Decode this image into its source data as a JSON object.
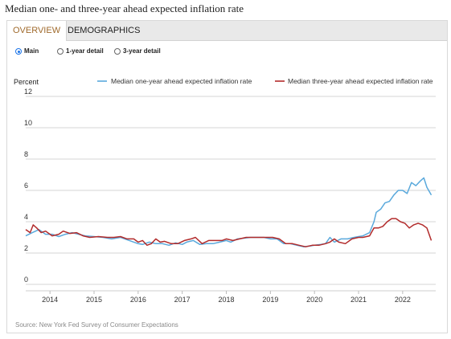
{
  "page": {
    "title": "Median one- and three-year ahead expected inflation rate",
    "source": "Source: New York Fed Survey of Consumer Expectations"
  },
  "tabs": [
    {
      "label": "OVERVIEW",
      "active": true
    },
    {
      "label": "DEMOGRAPHICS",
      "active": false
    }
  ],
  "options": [
    {
      "label": "Main",
      "selected": true
    },
    {
      "label": "1-year detail",
      "selected": false
    },
    {
      "label": "3-year detail",
      "selected": false
    }
  ],
  "colors": {
    "one_year": "#5aa9dc",
    "three_year": "#b22b2b",
    "grid": "#d6d6d6",
    "tab_active": "#a06a2c",
    "radio_selected": "#1a73e8"
  },
  "chart_data": {
    "type": "line",
    "ylabel": "Percent",
    "xlabel": "",
    "ylim": [
      0,
      12
    ],
    "yticks": [
      0,
      2,
      4,
      6,
      8,
      10,
      12
    ],
    "xlim": [
      2013.45,
      2022.75
    ],
    "xticks": [
      2014,
      2015,
      2016,
      2017,
      2018,
      2019,
      2020,
      2021,
      2022
    ],
    "grid": "horizontal",
    "legend": "top",
    "series": [
      {
        "name": "Median one-year ahead expected inflation rate",
        "color": "#5aa9dc",
        "points": [
          [
            2013.45,
            3.1
          ],
          [
            2013.6,
            3.3
          ],
          [
            2013.75,
            3.5
          ],
          [
            2013.9,
            3.2
          ],
          [
            2014.05,
            3.2
          ],
          [
            2014.2,
            3.05
          ],
          [
            2014.35,
            3.2
          ],
          [
            2014.5,
            3.3
          ],
          [
            2014.65,
            3.2
          ],
          [
            2014.8,
            3.1
          ],
          [
            2015.0,
            3.05
          ],
          [
            2015.2,
            3.0
          ],
          [
            2015.4,
            2.9
          ],
          [
            2015.6,
            3.0
          ],
          [
            2015.8,
            2.8
          ],
          [
            2016.0,
            2.6
          ],
          [
            2016.1,
            2.55
          ],
          [
            2016.25,
            2.7
          ],
          [
            2016.4,
            2.6
          ],
          [
            2016.55,
            2.6
          ],
          [
            2016.7,
            2.5
          ],
          [
            2016.85,
            2.65
          ],
          [
            2017.0,
            2.55
          ],
          [
            2017.1,
            2.7
          ],
          [
            2017.25,
            2.8
          ],
          [
            2017.4,
            2.55
          ],
          [
            2017.55,
            2.6
          ],
          [
            2017.7,
            2.6
          ],
          [
            2017.85,
            2.7
          ],
          [
            2018.0,
            2.8
          ],
          [
            2018.1,
            2.7
          ],
          [
            2018.25,
            2.9
          ],
          [
            2018.4,
            2.95
          ],
          [
            2018.55,
            3.0
          ],
          [
            2018.7,
            3.0
          ],
          [
            2018.85,
            3.0
          ],
          [
            2019.0,
            2.9
          ],
          [
            2019.15,
            2.9
          ],
          [
            2019.3,
            2.6
          ],
          [
            2019.45,
            2.6
          ],
          [
            2019.6,
            2.5
          ],
          [
            2019.75,
            2.4
          ],
          [
            2019.9,
            2.45
          ],
          [
            2020.0,
            2.5
          ],
          [
            2020.15,
            2.55
          ],
          [
            2020.25,
            2.6
          ],
          [
            2020.35,
            3.0
          ],
          [
            2020.45,
            2.7
          ],
          [
            2020.6,
            2.9
          ],
          [
            2020.75,
            2.9
          ],
          [
            2020.9,
            3.0
          ],
          [
            2021.0,
            3.05
          ],
          [
            2021.1,
            3.1
          ],
          [
            2021.25,
            3.3
          ],
          [
            2021.35,
            4.0
          ],
          [
            2021.4,
            4.6
          ],
          [
            2021.5,
            4.8
          ],
          [
            2021.6,
            5.2
          ],
          [
            2021.7,
            5.3
          ],
          [
            2021.8,
            5.7
          ],
          [
            2021.9,
            6.0
          ],
          [
            2022.0,
            6.0
          ],
          [
            2022.1,
            5.8
          ],
          [
            2022.2,
            6.5
          ],
          [
            2022.3,
            6.3
          ],
          [
            2022.4,
            6.6
          ],
          [
            2022.48,
            6.8
          ],
          [
            2022.55,
            6.2
          ],
          [
            2022.65,
            5.7
          ]
        ]
      },
      {
        "name": "Median three-year ahead expected inflation rate",
        "color": "#b22b2b",
        "points": [
          [
            2013.45,
            3.5
          ],
          [
            2013.55,
            3.3
          ],
          [
            2013.62,
            3.8
          ],
          [
            2013.7,
            3.6
          ],
          [
            2013.8,
            3.3
          ],
          [
            2013.9,
            3.4
          ],
          [
            2014.05,
            3.1
          ],
          [
            2014.2,
            3.2
          ],
          [
            2014.3,
            3.4
          ],
          [
            2014.45,
            3.25
          ],
          [
            2014.6,
            3.3
          ],
          [
            2014.75,
            3.1
          ],
          [
            2014.9,
            3.0
          ],
          [
            2015.1,
            3.05
          ],
          [
            2015.3,
            3.0
          ],
          [
            2015.45,
            3.0
          ],
          [
            2015.6,
            3.05
          ],
          [
            2015.75,
            2.9
          ],
          [
            2015.9,
            2.9
          ],
          [
            2016.0,
            2.7
          ],
          [
            2016.1,
            2.8
          ],
          [
            2016.2,
            2.5
          ],
          [
            2016.3,
            2.6
          ],
          [
            2016.4,
            2.9
          ],
          [
            2016.5,
            2.7
          ],
          [
            2016.6,
            2.75
          ],
          [
            2016.75,
            2.6
          ],
          [
            2016.9,
            2.6
          ],
          [
            2017.05,
            2.8
          ],
          [
            2017.2,
            2.9
          ],
          [
            2017.3,
            3.0
          ],
          [
            2017.45,
            2.6
          ],
          [
            2017.6,
            2.8
          ],
          [
            2017.75,
            2.8
          ],
          [
            2017.9,
            2.8
          ],
          [
            2018.0,
            2.9
          ],
          [
            2018.15,
            2.8
          ],
          [
            2018.3,
            2.9
          ],
          [
            2018.45,
            3.0
          ],
          [
            2018.6,
            3.0
          ],
          [
            2018.75,
            3.0
          ],
          [
            2018.9,
            3.0
          ],
          [
            2019.05,
            3.0
          ],
          [
            2019.2,
            2.9
          ],
          [
            2019.35,
            2.6
          ],
          [
            2019.5,
            2.6
          ],
          [
            2019.65,
            2.5
          ],
          [
            2019.8,
            2.4
          ],
          [
            2019.95,
            2.5
          ],
          [
            2020.1,
            2.5
          ],
          [
            2020.25,
            2.6
          ],
          [
            2020.35,
            2.7
          ],
          [
            2020.45,
            2.9
          ],
          [
            2020.55,
            2.7
          ],
          [
            2020.7,
            2.6
          ],
          [
            2020.85,
            2.9
          ],
          [
            2021.0,
            3.0
          ],
          [
            2021.1,
            3.0
          ],
          [
            2021.25,
            3.1
          ],
          [
            2021.35,
            3.6
          ],
          [
            2021.45,
            3.6
          ],
          [
            2021.55,
            3.7
          ],
          [
            2021.65,
            4.0
          ],
          [
            2021.75,
            4.2
          ],
          [
            2021.85,
            4.2
          ],
          [
            2021.95,
            4.0
          ],
          [
            2022.05,
            3.9
          ],
          [
            2022.15,
            3.6
          ],
          [
            2022.25,
            3.8
          ],
          [
            2022.35,
            3.9
          ],
          [
            2022.45,
            3.8
          ],
          [
            2022.55,
            3.6
          ],
          [
            2022.65,
            2.8
          ]
        ]
      }
    ]
  }
}
